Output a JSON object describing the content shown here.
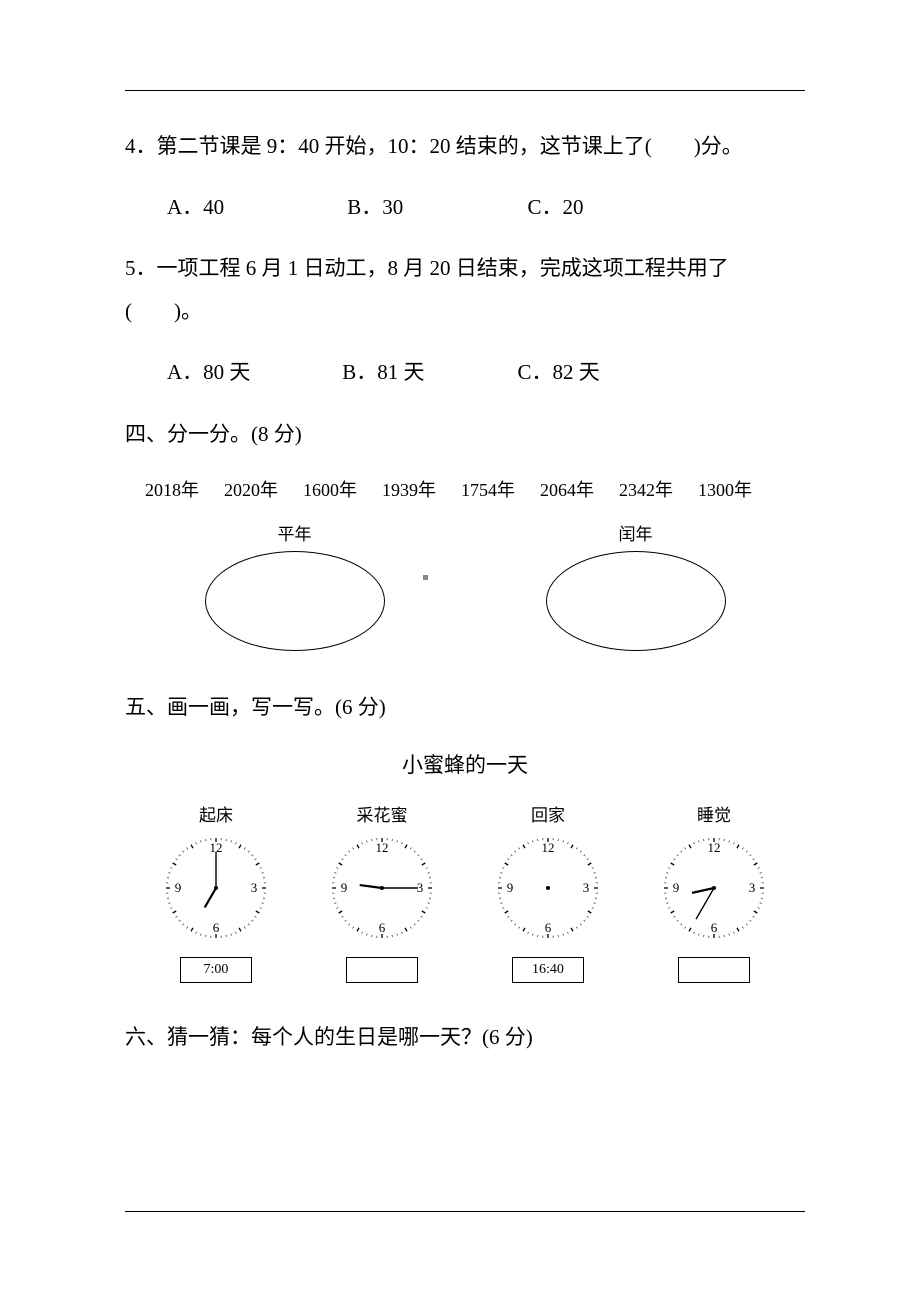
{
  "q4": {
    "text": "4．第二节课是 9：40 开始，10：20 结束的，这节课上了(　　)分。",
    "optA": "A．40",
    "optB": "B．30",
    "optC": "C．20"
  },
  "q5": {
    "text": "5．一项工程 6 月 1 日动工，8 月 20 日结束，完成这项工程共用了",
    "text2": "(　　)。",
    "optA": "A．80 天",
    "optB": "B．81 天",
    "optC": "C．82 天"
  },
  "sec4": {
    "title": "四、分一分。(8 分)",
    "years": [
      "2018年",
      "2020年",
      "1600年",
      "1939年",
      "1754年",
      "2064年",
      "2342年",
      "1300年"
    ],
    "leftLabel": "平年",
    "rightLabel": "闰年"
  },
  "sec5": {
    "title": "五、画一画，写一写。(6 分)",
    "subtitle": "小蜜蜂的一天",
    "clocks": [
      {
        "label": "起床",
        "hour": 7,
        "min": 0,
        "timeText": "7:00",
        "showHands": true
      },
      {
        "label": "采花蜜",
        "hour": 9,
        "min": 15,
        "timeText": "",
        "showHands": true
      },
      {
        "label": "回家",
        "hour": 0,
        "min": 0,
        "timeText": "16:40",
        "showHands": false
      },
      {
        "label": "睡觉",
        "hour": 8,
        "min": 35,
        "timeText": "",
        "showHands": true
      }
    ]
  },
  "sec6": {
    "title": "六、猜一猜：每个人的生日是哪一天？(6 分)"
  },
  "style": {
    "clockNumFont": 13,
    "clockRadius": 50,
    "clockStroke": "#000000",
    "background": "#ffffff"
  }
}
